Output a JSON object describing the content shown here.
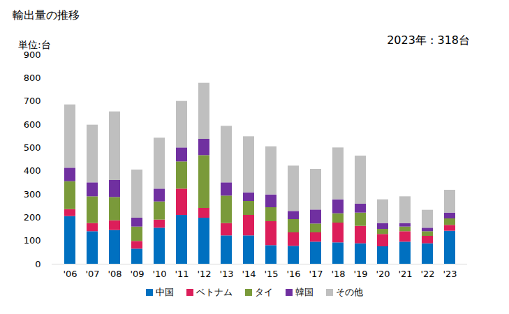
{
  "chart_data": {
    "type": "bar",
    "stacked": true,
    "title": "輸出量の推移",
    "y_label": "単位:台",
    "annotation": "2023年 : 318台",
    "categories": [
      "'06",
      "'07",
      "'08",
      "'09",
      "'10",
      "'11",
      "'12",
      "'13",
      "'14",
      "'15",
      "'16",
      "'17",
      "'18",
      "'19",
      "'20",
      "'21",
      "'22",
      "'23"
    ],
    "series": [
      {
        "name": "中国",
        "color": "#0070c0",
        "values": [
          205,
          140,
          145,
          65,
          155,
          210,
          198,
          122,
          122,
          80,
          77,
          95,
          92,
          88,
          75,
          95,
          88,
          142
        ]
      },
      {
        "name": "ベトナム",
        "color": "#dc1e5a",
        "values": [
          30,
          35,
          42,
          33,
          35,
          113,
          42,
          53,
          88,
          103,
          58,
          40,
          85,
          75,
          53,
          45,
          32,
          25
        ]
      },
      {
        "name": "タイ",
        "color": "#7a9a3a",
        "values": [
          120,
          115,
          100,
          62,
          78,
          117,
          227,
          118,
          60,
          60,
          57,
          38,
          40,
          57,
          22,
          20,
          20,
          28
        ]
      },
      {
        "name": "韓国",
        "color": "#7030a0",
        "values": [
          58,
          60,
          73,
          38,
          55,
          60,
          70,
          57,
          37,
          55,
          35,
          60,
          60,
          38,
          25,
          15,
          15,
          25
        ]
      },
      {
        "name": "その他",
        "color": "#bfbfbf",
        "values": [
          272,
          248,
          295,
          207,
          219,
          200,
          241,
          243,
          241,
          207,
          195,
          175,
          223,
          207,
          102,
          115,
          77,
          98
        ]
      }
    ],
    "ylim": [
      0,
      900
    ],
    "yticks": [
      0,
      100,
      200,
      300,
      400,
      500,
      600,
      700,
      800,
      900
    ],
    "grid": false,
    "legend": "bottom"
  }
}
